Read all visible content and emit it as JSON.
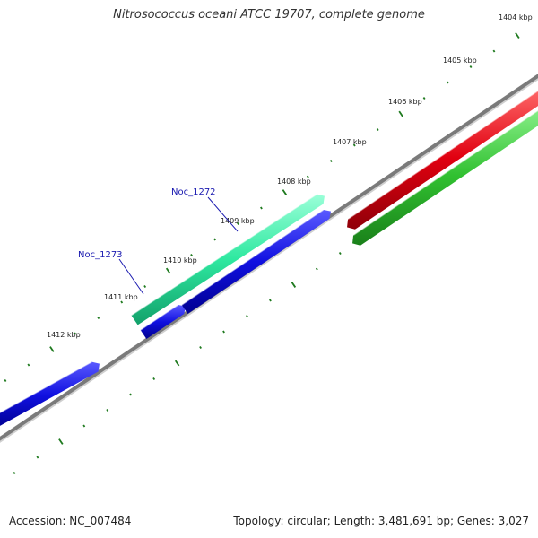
{
  "title": "Nitrosococcus oceani ATCC 19707, complete genome",
  "footer": {
    "accession": "Accession: NC_007484",
    "summary": "Topology: circular; Length: 3,481,691 bp; Genes: 3,027"
  },
  "axis": {
    "unit": "kbp",
    "ticks": [
      "1404 kbp",
      "1405 kbp",
      "1406 kbp",
      "1407 kbp",
      "1408 kbp",
      "1409 kbp",
      "1410 kbp",
      "1411 kbp",
      "1412 kbp"
    ]
  },
  "gene_labels": [
    "Noc_1272",
    "Noc_1273"
  ],
  "colors": {
    "backbone": "#808080",
    "tick": "#1f7a1f",
    "gene_green": "#2ee8a0",
    "gene_blue": "#1010e0",
    "gene_red": "#e00010",
    "gene_lightgreen": "#30c030",
    "label": "#1a1ab0"
  }
}
